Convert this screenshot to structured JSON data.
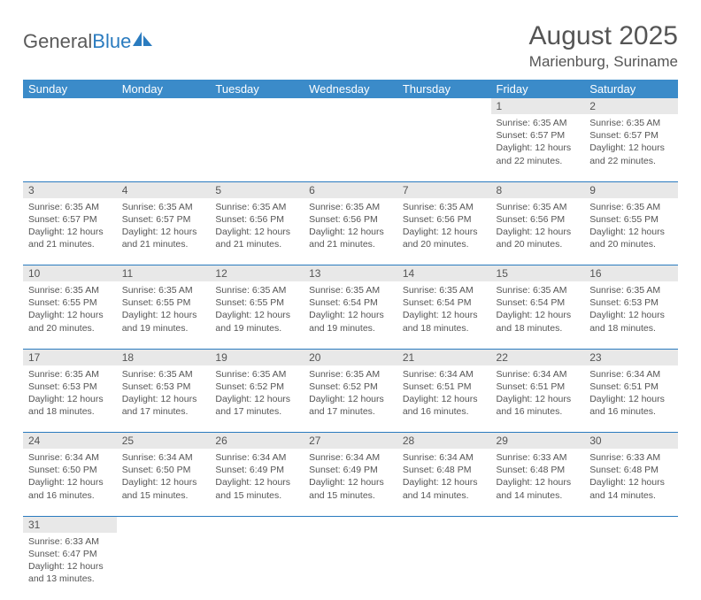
{
  "logo": {
    "text1": "General",
    "text2": "Blue"
  },
  "title": "August 2025",
  "location": "Marienburg, Suriname",
  "colors": {
    "header_bg": "#3b8bc9",
    "header_text": "#ffffff",
    "daynum_bg": "#e8e8e8",
    "border": "#2a7bbf",
    "text": "#555555",
    "page_bg": "#ffffff"
  },
  "fonts": {
    "title_size": 30,
    "location_size": 17,
    "th_size": 13,
    "cell_size": 10.5
  },
  "day_headers": [
    "Sunday",
    "Monday",
    "Tuesday",
    "Wednesday",
    "Thursday",
    "Friday",
    "Saturday"
  ],
  "weeks": [
    {
      "nums": [
        "",
        "",
        "",
        "",
        "",
        "1",
        "2"
      ],
      "cells": [
        null,
        null,
        null,
        null,
        null,
        {
          "sunrise": "6:35 AM",
          "sunset": "6:57 PM",
          "daylight": "12 hours and 22 minutes."
        },
        {
          "sunrise": "6:35 AM",
          "sunset": "6:57 PM",
          "daylight": "12 hours and 22 minutes."
        }
      ]
    },
    {
      "nums": [
        "3",
        "4",
        "5",
        "6",
        "7",
        "8",
        "9"
      ],
      "cells": [
        {
          "sunrise": "6:35 AM",
          "sunset": "6:57 PM",
          "daylight": "12 hours and 21 minutes."
        },
        {
          "sunrise": "6:35 AM",
          "sunset": "6:57 PM",
          "daylight": "12 hours and 21 minutes."
        },
        {
          "sunrise": "6:35 AM",
          "sunset": "6:56 PM",
          "daylight": "12 hours and 21 minutes."
        },
        {
          "sunrise": "6:35 AM",
          "sunset": "6:56 PM",
          "daylight": "12 hours and 21 minutes."
        },
        {
          "sunrise": "6:35 AM",
          "sunset": "6:56 PM",
          "daylight": "12 hours and 20 minutes."
        },
        {
          "sunrise": "6:35 AM",
          "sunset": "6:56 PM",
          "daylight": "12 hours and 20 minutes."
        },
        {
          "sunrise": "6:35 AM",
          "sunset": "6:55 PM",
          "daylight": "12 hours and 20 minutes."
        }
      ]
    },
    {
      "nums": [
        "10",
        "11",
        "12",
        "13",
        "14",
        "15",
        "16"
      ],
      "cells": [
        {
          "sunrise": "6:35 AM",
          "sunset": "6:55 PM",
          "daylight": "12 hours and 20 minutes."
        },
        {
          "sunrise": "6:35 AM",
          "sunset": "6:55 PM",
          "daylight": "12 hours and 19 minutes."
        },
        {
          "sunrise": "6:35 AM",
          "sunset": "6:55 PM",
          "daylight": "12 hours and 19 minutes."
        },
        {
          "sunrise": "6:35 AM",
          "sunset": "6:54 PM",
          "daylight": "12 hours and 19 minutes."
        },
        {
          "sunrise": "6:35 AM",
          "sunset": "6:54 PM",
          "daylight": "12 hours and 18 minutes."
        },
        {
          "sunrise": "6:35 AM",
          "sunset": "6:54 PM",
          "daylight": "12 hours and 18 minutes."
        },
        {
          "sunrise": "6:35 AM",
          "sunset": "6:53 PM",
          "daylight": "12 hours and 18 minutes."
        }
      ]
    },
    {
      "nums": [
        "17",
        "18",
        "19",
        "20",
        "21",
        "22",
        "23"
      ],
      "cells": [
        {
          "sunrise": "6:35 AM",
          "sunset": "6:53 PM",
          "daylight": "12 hours and 18 minutes."
        },
        {
          "sunrise": "6:35 AM",
          "sunset": "6:53 PM",
          "daylight": "12 hours and 17 minutes."
        },
        {
          "sunrise": "6:35 AM",
          "sunset": "6:52 PM",
          "daylight": "12 hours and 17 minutes."
        },
        {
          "sunrise": "6:35 AM",
          "sunset": "6:52 PM",
          "daylight": "12 hours and 17 minutes."
        },
        {
          "sunrise": "6:34 AM",
          "sunset": "6:51 PM",
          "daylight": "12 hours and 16 minutes."
        },
        {
          "sunrise": "6:34 AM",
          "sunset": "6:51 PM",
          "daylight": "12 hours and 16 minutes."
        },
        {
          "sunrise": "6:34 AM",
          "sunset": "6:51 PM",
          "daylight": "12 hours and 16 minutes."
        }
      ]
    },
    {
      "nums": [
        "24",
        "25",
        "26",
        "27",
        "28",
        "29",
        "30"
      ],
      "cells": [
        {
          "sunrise": "6:34 AM",
          "sunset": "6:50 PM",
          "daylight": "12 hours and 16 minutes."
        },
        {
          "sunrise": "6:34 AM",
          "sunset": "6:50 PM",
          "daylight": "12 hours and 15 minutes."
        },
        {
          "sunrise": "6:34 AM",
          "sunset": "6:49 PM",
          "daylight": "12 hours and 15 minutes."
        },
        {
          "sunrise": "6:34 AM",
          "sunset": "6:49 PM",
          "daylight": "12 hours and 15 minutes."
        },
        {
          "sunrise": "6:34 AM",
          "sunset": "6:48 PM",
          "daylight": "12 hours and 14 minutes."
        },
        {
          "sunrise": "6:33 AM",
          "sunset": "6:48 PM",
          "daylight": "12 hours and 14 minutes."
        },
        {
          "sunrise": "6:33 AM",
          "sunset": "6:48 PM",
          "daylight": "12 hours and 14 minutes."
        }
      ]
    },
    {
      "nums": [
        "31",
        "",
        "",
        "",
        "",
        "",
        ""
      ],
      "cells": [
        {
          "sunrise": "6:33 AM",
          "sunset": "6:47 PM",
          "daylight": "12 hours and 13 minutes."
        },
        null,
        null,
        null,
        null,
        null,
        null
      ]
    }
  ],
  "labels": {
    "sunrise": "Sunrise:",
    "sunset": "Sunset:",
    "daylight": "Daylight:"
  }
}
